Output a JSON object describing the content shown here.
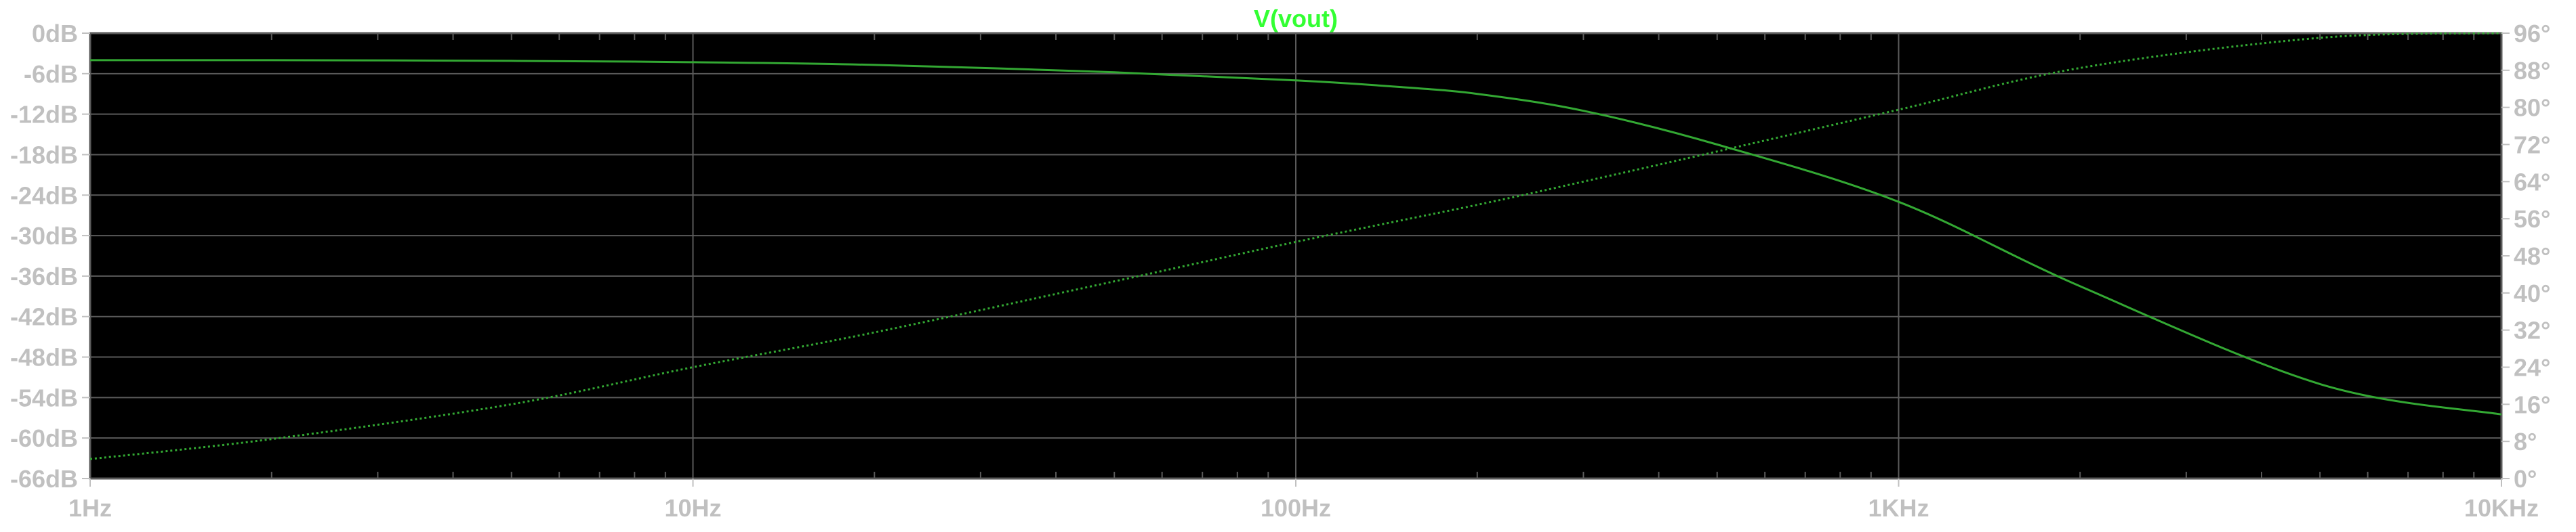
{
  "colors": {
    "background": "#000000",
    "frame_background": "#ffffff",
    "grid": "#5a5a5a",
    "axis_text": "#c0c0c0",
    "trace": "#33a833",
    "title": "#33ff33"
  },
  "chart_data": {
    "type": "line",
    "title": "V(vout)",
    "xlabel": "",
    "ylabel": "",
    "x_scale": "log",
    "xlim": [
      1,
      10000
    ],
    "x_tick_labels": [
      "1Hz",
      "10Hz",
      "100Hz",
      "1KHz",
      "10KHz"
    ],
    "y_left_lim": [
      -66,
      0
    ],
    "y_left_ticks": [
      "0dB",
      "-6dB",
      "-12dB",
      "-18dB",
      "-24dB",
      "-30dB",
      "-36dB",
      "-42dB",
      "-48dB",
      "-54dB",
      "-60dB",
      "-66dB"
    ],
    "y_right_lim": [
      0,
      96
    ],
    "y_right_ticks": [
      "96°",
      "88°",
      "80°",
      "72°",
      "64°",
      "56°",
      "48°",
      "40°",
      "32°",
      "24°",
      "16°",
      "8°",
      "0°"
    ],
    "grid": true,
    "series": [
      {
        "axis": "left",
        "style": "solid",
        "x": [
          1,
          2,
          5,
          10,
          20,
          50,
          100,
          150,
          200,
          300,
          500,
          1000,
          2000,
          5000,
          10000
        ],
        "y": [
          -4.0,
          -4.0,
          -4.1,
          -4.3,
          -4.7,
          -5.8,
          -7.0,
          -8.0,
          -9.0,
          -11.5,
          -16.5,
          -25.0,
          -37.5,
          -52.0,
          -56.5
        ]
      },
      {
        "axis": "right",
        "style": "dotted",
        "x": [
          1,
          2,
          5,
          10,
          20,
          50,
          100,
          200,
          300,
          500,
          1000,
          2000,
          5000,
          10000
        ],
        "y": [
          4.2,
          8.5,
          16.0,
          24.0,
          31.5,
          42.5,
          51.0,
          59.0,
          64.0,
          70.5,
          79.5,
          88.5,
          95.0,
          96.0
        ]
      }
    ]
  }
}
